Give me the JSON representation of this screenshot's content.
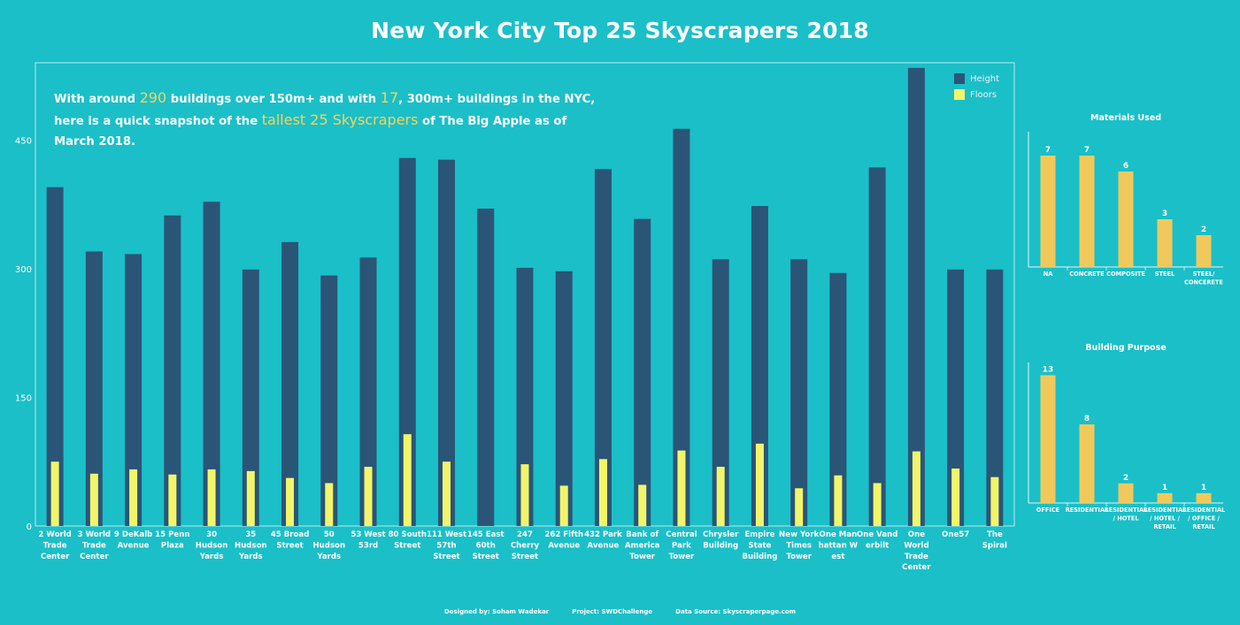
{
  "title": "New York City Top 25 Skyscrapers 2018",
  "intro": {
    "part1": "With around ",
    "num1": "290",
    "part2": " buildings over 150m+ and with ",
    "num2": "17",
    "part3": ", 300m+ buildings in the NYC, here is a quick snapshot of the ",
    "highlight": "tallest 25 Skyscrapers",
    "part4": " of The Big Apple as of March 2018."
  },
  "legend": [
    {
      "name": "Height",
      "color": "#2a5577"
    },
    {
      "name": "Floors",
      "color": "#f2f56a"
    }
  ],
  "colors": {
    "height": "#2a5577",
    "floors": "#f2f56a",
    "side_bars": "#f0c95c",
    "background": "#1bbfc8"
  },
  "footer": {
    "designed": "Designed by: Soham Wadekar",
    "project": "Project: SWDChallenge",
    "source": "Data Source: Skyscraperpage.com"
  },
  "chart_data": [
    {
      "type": "bar",
      "title": "",
      "ylim": [
        0,
        540
      ],
      "yticks": [
        0,
        150,
        300,
        450
      ],
      "categories": [
        "2 World Trade Center",
        "3 World Trade Center",
        "9 DeKalb Avenue",
        "15 Penn Plaza",
        "30 Hudson Yards",
        "35 Hudson Yards",
        "45 Broad Street",
        "50 Hudson Yards",
        "53 West 53rd",
        "80 South Street",
        "111 West 57th Street",
        "145 East 60th Street",
        "247 Cherry Street",
        "262 Fifth Avenue",
        "432 Park Avenue",
        "Bank of America Tower",
        "Central Park Tower",
        "Chrysler Building",
        "Empire State Building",
        "New York Times Tower",
        "One Manhattan West",
        "One Vanderbilt",
        "One World Trade Center",
        "One57",
        "The Spiral"
      ],
      "tick_labels": [
        [
          "2 World",
          "Trade",
          "Center"
        ],
        [
          "3 World",
          "Trade",
          "Center"
        ],
        [
          "9 DeKalb",
          "Avenue"
        ],
        [
          "15 Penn",
          "Plaza"
        ],
        [
          "30",
          "Hudson",
          "Yards"
        ],
        [
          "35",
          "Hudson",
          "Yards"
        ],
        [
          "45 Broad",
          "Street"
        ],
        [
          "50",
          "Hudson",
          "Yards"
        ],
        [
          "53 West",
          "53rd"
        ],
        [
          "80 South",
          "Street"
        ],
        [
          "111 West",
          "57th",
          "Street"
        ],
        [
          "145 East",
          "60th",
          "Street"
        ],
        [
          "247",
          "Cherry",
          "Street"
        ],
        [
          "262 Fifth",
          "Avenue"
        ],
        [
          "432 Park",
          "Avenue"
        ],
        [
          "Bank of",
          "America",
          "Tower"
        ],
        [
          "Central",
          "Park",
          "Tower"
        ],
        [
          "Chrysler",
          "Building"
        ],
        [
          "Empire",
          "State",
          "Building"
        ],
        [
          "New York",
          "Times",
          "Tower"
        ],
        [
          "One Man",
          "hattan W",
          "est"
        ],
        [
          "One Vand",
          "erbilt"
        ],
        [
          "One",
          "World",
          "Trade",
          "Center"
        ],
        [
          "One57"
        ],
        [
          "The",
          "Spiral"
        ]
      ],
      "series": [
        {
          "name": "Height",
          "values": [
            395,
            320,
            317,
            362,
            378,
            299,
            331,
            292,
            313,
            429,
            427,
            370,
            301,
            297,
            416,
            358,
            463,
            311,
            373,
            311,
            295,
            418,
            534,
            299,
            299
          ]
        },
        {
          "name": "Floors",
          "values": [
            75,
            61,
            66,
            60,
            66,
            64,
            56,
            50,
            69,
            107,
            75,
            0,
            72,
            47,
            78,
            48,
            88,
            69,
            96,
            44,
            59,
            50,
            87,
            67,
            57
          ]
        }
      ]
    },
    {
      "type": "bar",
      "title": "Materials Used",
      "categories": [
        "NA",
        "CONCRETE",
        "COMPOSITE",
        "STEEL",
        "STEEL/ CONCERETE"
      ],
      "tick_labels": [
        [
          "NA"
        ],
        [
          "CONCRETE"
        ],
        [
          "COMPOSITE"
        ],
        [
          "STEEL"
        ],
        [
          "STEEL/",
          "CONCERETE"
        ]
      ],
      "values": [
        7,
        7,
        6,
        3,
        2
      ],
      "ylim": [
        0,
        8.5
      ]
    },
    {
      "type": "bar",
      "title": "Building Purpose",
      "categories": [
        "OFFICE",
        "RESIDENTIAL",
        "RESIDENTIAL / HOTEL",
        "RESIDENTIAL / HOTEL / RETAIL",
        "RESIDENTIAL / OFFICE / RETAIL"
      ],
      "tick_labels": [
        [
          "OFFICE"
        ],
        [
          "RESIDENTIAL"
        ],
        [
          "RESIDENTIAL",
          "/ HOTEL"
        ],
        [
          "RESIDENTIAL",
          "/ HOTEL /",
          "RETAIL"
        ],
        [
          "RESIDENTIAL",
          "/ OFFICE /",
          "RETAIL"
        ]
      ],
      "values": [
        13,
        8,
        2,
        1,
        1
      ],
      "ylim": [
        0,
        14.3
      ]
    }
  ]
}
